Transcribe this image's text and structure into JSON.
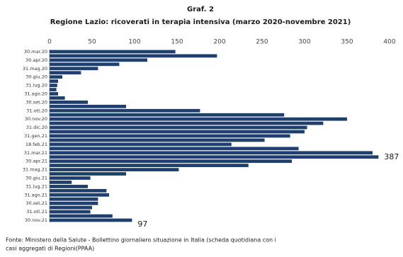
{
  "chart_data": {
    "type": "bar",
    "orientation": "horizontal",
    "title": "Graf. 2",
    "subtitle": "Regione Lazio: ricoverati in terapia intensiva (marzo 2020-novembre 2021)",
    "categories": [
      "30.mar.20",
      null,
      "30.apr.20",
      null,
      "31.mag.20",
      null,
      "30.giu.20",
      null,
      "31.lug.20",
      null,
      "31.ago.20",
      null,
      "30.set.20",
      null,
      "31.ott.20",
      null,
      "30.nov.20",
      null,
      "31.dic.20",
      null,
      "31.gen.21",
      null,
      "18.feb.21",
      null,
      "31.mar.21",
      null,
      "30.apr.21",
      null,
      "31.mag.21",
      null,
      "30.giu.21",
      null,
      "31.lug.21",
      null,
      "31.ago.21",
      null,
      "30.set.21",
      null,
      "31.ott.21",
      null,
      "30.nov.21"
    ],
    "values": [
      148,
      197,
      115,
      82,
      57,
      37,
      15,
      10,
      9,
      8,
      10,
      18,
      45,
      90,
      177,
      276,
      350,
      322,
      303,
      300,
      283,
      253,
      214,
      293,
      380,
      387,
      285,
      234,
      152,
      90,
      48,
      26,
      45,
      67,
      70,
      57,
      57,
      50,
      48,
      74,
      97
    ],
    "color": "#1f3f6e",
    "xlim": [
      0,
      400
    ],
    "xticks": [
      0,
      50,
      100,
      150,
      200,
      250,
      300,
      350,
      400
    ],
    "source": [
      "Fonte: Ministero della Salute - Bollettino giornaliero situazione in Italia  (scheda quotidiana con i",
      "casi aggregati di Regioni(PPAA)"
    ]
  }
}
